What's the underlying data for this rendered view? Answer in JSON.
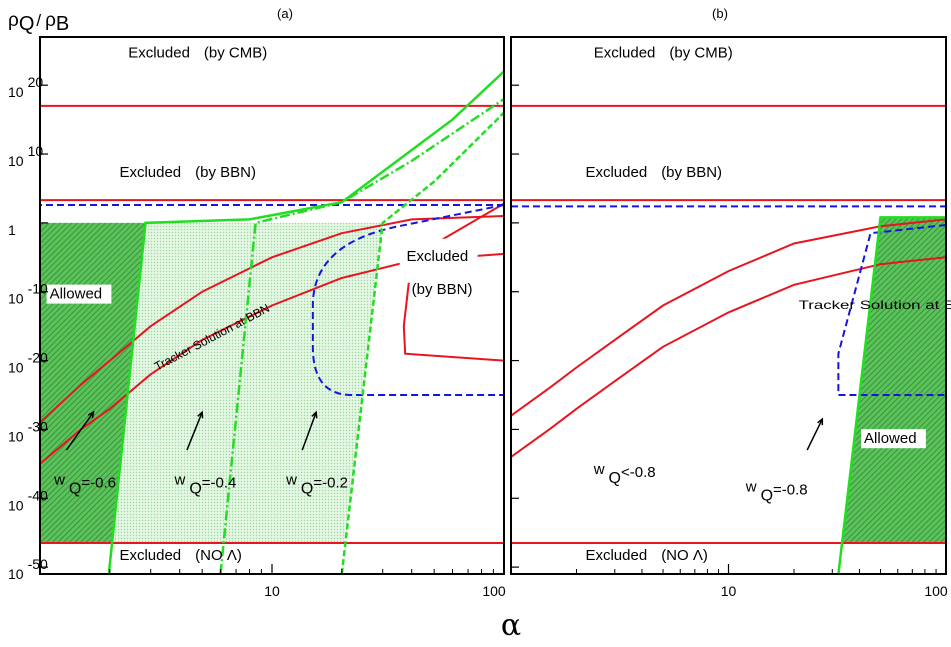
{
  "chart_data": [
    {
      "panel_label": "(a)",
      "type": "line",
      "x_scale": "log",
      "y_scale": "log",
      "xlim": [
        1,
        100
      ],
      "ylim_exponent": [
        -51,
        27
      ],
      "x_ticks": [
        {
          "value": 10,
          "label": "10"
        },
        {
          "value": 100,
          "label": "100"
        }
      ],
      "y_ticks": [
        {
          "exp": 20,
          "base": "10",
          "sup": "20"
        },
        {
          "exp": 10,
          "base": "10",
          "sup": "10"
        },
        {
          "exp": 0,
          "base": "1",
          "sup": ""
        },
        {
          "exp": -10,
          "base": "10",
          "sup": "-10"
        },
        {
          "exp": -20,
          "base": "10",
          "sup": "-20"
        },
        {
          "exp": -30,
          "base": "10",
          "sup": "-30"
        },
        {
          "exp": -40,
          "base": "10",
          "sup": "-40"
        },
        {
          "exp": -50,
          "base": "10",
          "sup": "-50"
        }
      ],
      "bounds": {
        "cmb_log_y": 17,
        "bbn_log_y": 3.3,
        "no_lambda_log_y": -46.5
      },
      "region_labels": [
        {
          "text": "Excluded",
          "sub": "(by CMB)",
          "alpha": 2.4,
          "y_exp": 24
        },
        {
          "text": "Excluded",
          "sub": "(by BBN)",
          "alpha": 2.2,
          "y_exp": 6.7
        },
        {
          "text": "Excluded",
          "sub": "(NO Λ)",
          "alpha": 2.2,
          "y_exp": -49
        },
        {
          "text": "Allowed",
          "alpha": 1.1,
          "y_exp": -11
        }
      ],
      "excluded_bbn_island_label": {
        "text": "Excluded",
        "sub": "(by BBN)"
      },
      "tracker_label": "Tracker Solution at BBN",
      "tracker_band": {
        "upper": [
          [
            1,
            -29
          ],
          [
            1.5,
            -23.5
          ],
          [
            2,
            -20
          ],
          [
            3,
            -15
          ],
          [
            5,
            -10
          ],
          [
            10,
            -5
          ],
          [
            20,
            -1.5
          ],
          [
            40,
            0.5
          ],
          [
            100,
            1
          ]
        ],
        "lower": [
          [
            1,
            -35
          ],
          [
            1.5,
            -30
          ],
          [
            2,
            -27
          ],
          [
            3,
            -22
          ],
          [
            5,
            -17
          ],
          [
            10,
            -12
          ],
          [
            20,
            -8
          ],
          [
            40,
            -5.5
          ],
          [
            100,
            -4.5
          ]
        ]
      },
      "bbn_contour": [
        [
          100,
          3.3
        ],
        [
          35,
          -7
        ],
        [
          15,
          -10
        ],
        [
          14.5,
          -20
        ],
        [
          14,
          -25
        ],
        [
          100,
          -25
        ]
      ],
      "island": [
        [
          100,
          2.8
        ],
        [
          40,
          -5
        ],
        [
          37,
          -15
        ],
        [
          37.5,
          -19
        ],
        [
          100,
          -20
        ]
      ],
      "w_curves": [
        {
          "label": "w",
          "sub": "Q",
          "value": "=-0.6",
          "style": "solid",
          "points": [
            [
              1.98,
              -51
            ],
            [
              2.85,
              0
            ],
            [
              8,
              0.5
            ],
            [
              20,
              3
            ],
            [
              60,
              15
            ],
            [
              100,
              22
            ]
          ],
          "fill": "dark"
        },
        {
          "label": "w",
          "sub": "Q",
          "value": "=-0.4",
          "style": "dashdot",
          "points": [
            [
              6,
              -51
            ],
            [
              8.5,
              0
            ],
            [
              20,
              3
            ],
            [
              40,
              9
            ],
            [
              100,
              18
            ]
          ],
          "fill": "light"
        },
        {
          "label": "w",
          "sub": "Q",
          "value": "=-0.2",
          "style": "dash",
          "points": [
            [
              20,
              -51
            ],
            [
              30,
              0
            ],
            [
              50,
              6
            ],
            [
              100,
              16
            ]
          ],
          "fill": "light"
        }
      ],
      "w_label_positions": [
        [
          1.15,
          -38
        ],
        [
          3.8,
          -38
        ],
        [
          11.5,
          -38
        ]
      ],
      "w_arrows": [
        [
          [
            1.3,
            -33
          ],
          [
            1.7,
            -27.5
          ]
        ],
        [
          [
            4.3,
            -33
          ],
          [
            5,
            -27.5
          ]
        ],
        [
          [
            13.5,
            -33
          ],
          [
            15.5,
            -27.5
          ]
        ]
      ]
    },
    {
      "panel_label": "(b)",
      "type": "line",
      "x_scale": "log",
      "y_scale": "log",
      "xlim": [
        1,
        100
      ],
      "ylim_exponent": [
        -51,
        27
      ],
      "x_ticks": [
        {
          "value": 10,
          "label": "10"
        },
        {
          "value": 100,
          "label": "100"
        }
      ],
      "bounds": {
        "cmb_log_y": 17,
        "bbn_log_y": 3.3,
        "no_lambda_log_y": -46.5
      },
      "region_labels": [
        {
          "text": "Excluded",
          "sub": "(by CMB)",
          "alpha": 2.4,
          "y_exp": 24
        },
        {
          "text": "Excluded",
          "sub": "(by BBN)",
          "alpha": 2.2,
          "y_exp": 6.7
        },
        {
          "text": "Excluded",
          "sub": "(NO Λ)",
          "alpha": 2.2,
          "y_exp": -49
        },
        {
          "text": "Allowed",
          "alpha": 42,
          "y_exp": -32
        }
      ],
      "tracker_label": "Tracker Solution at BBN",
      "tracker_band": {
        "upper": [
          [
            1,
            -28
          ],
          [
            1.5,
            -24
          ],
          [
            2,
            -21
          ],
          [
            3,
            -17
          ],
          [
            5,
            -12
          ],
          [
            10,
            -7
          ],
          [
            20,
            -3
          ],
          [
            50,
            -0.5
          ],
          [
            100,
            0.5
          ]
        ],
        "lower": [
          [
            1,
            -34
          ],
          [
            1.5,
            -30
          ],
          [
            2,
            -27
          ],
          [
            3,
            -23
          ],
          [
            5,
            -18
          ],
          [
            10,
            -13
          ],
          [
            20,
            -9
          ],
          [
            50,
            -6
          ],
          [
            100,
            -5
          ]
        ]
      },
      "bbn_contour": [
        [
          100,
          0.5
        ],
        [
          45,
          -1
        ],
        [
          32,
          -20
        ],
        [
          100,
          -20
        ]
      ],
      "w_curves": [
        {
          "label": "w",
          "sub": "Q",
          "value": "<-0.8",
          "style": "none",
          "points": [],
          "fill": "none"
        },
        {
          "label": "w",
          "sub": "Q",
          "value": "=-0.8",
          "style": "solid",
          "points": [
            [
              32,
              -51
            ],
            [
              50,
              0.8
            ],
            [
              100,
              0.8
            ]
          ],
          "fill": "dark"
        }
      ],
      "w_label_positions": [
        [
          2.4,
          -36.5
        ],
        [
          12,
          -39
        ]
      ],
      "w_arrows": [
        [],
        [
          [
            23,
            -33
          ],
          [
            27,
            -28.5
          ]
        ]
      ]
    }
  ],
  "shared": {
    "ylabel_main": "ρ",
    "ylabel_main_sub": "Q",
    "ylabel_sep": "/",
    "ylabel_den": "ρ",
    "ylabel_den_sub": "B",
    "xlabel": "α",
    "colors": {
      "red": "#e8141e",
      "green": "#22dd22",
      "blue": "#1515e0",
      "fill_dark": "#3ea83e",
      "fill_light": "#c9ecc9"
    }
  }
}
